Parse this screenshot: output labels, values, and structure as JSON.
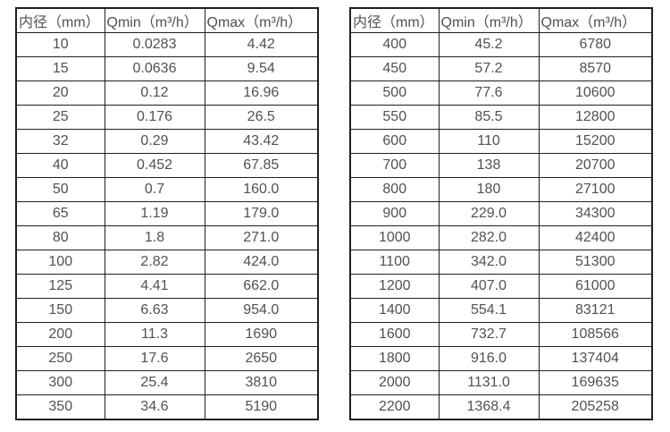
{
  "colors": {
    "background": "#ffffff",
    "border": "#1f1f1f",
    "text": "#515151"
  },
  "chart_data": [
    {
      "type": "table",
      "title": "",
      "columns": [
        "内径（mm）",
        "Qmin（m³/h）",
        "Qmax（m³/h）"
      ],
      "rows": [
        [
          "10",
          "0.0283",
          "4.42"
        ],
        [
          "15",
          "0.0636",
          "9.54"
        ],
        [
          "20",
          "0.12",
          "16.96"
        ],
        [
          "25",
          "0.176",
          "26.5"
        ],
        [
          "32",
          "0.29",
          "43.42"
        ],
        [
          "40",
          "0.452",
          "67.85"
        ],
        [
          "50",
          "0.7",
          "160.0"
        ],
        [
          "65",
          "1.19",
          "179.0"
        ],
        [
          "80",
          "1.8",
          "271.0"
        ],
        [
          "100",
          "2.82",
          "424.0"
        ],
        [
          "125",
          "4.41",
          "662.0"
        ],
        [
          "150",
          "6.63",
          "954.0"
        ],
        [
          "200",
          "11.3",
          "1690"
        ],
        [
          "250",
          "17.6",
          "2650"
        ],
        [
          "300",
          "25.4",
          "3810"
        ],
        [
          "350",
          "34.6",
          "5190"
        ]
      ]
    },
    {
      "type": "table",
      "title": "",
      "columns": [
        "内径（mm）",
        "Qmin（m³/h）",
        "Qmax（m³/h）"
      ],
      "rows": [
        [
          "400",
          "45.2",
          "6780"
        ],
        [
          "450",
          "57.2",
          "8570"
        ],
        [
          "500",
          "77.6",
          "10600"
        ],
        [
          "550",
          "85.5",
          "12800"
        ],
        [
          "600",
          "110",
          "15200"
        ],
        [
          "700",
          "138",
          "20700"
        ],
        [
          "800",
          "180",
          "27100"
        ],
        [
          "900",
          "229.0",
          "34300"
        ],
        [
          "1000",
          "282.0",
          "42400"
        ],
        [
          "1100",
          "342.0",
          "51300"
        ],
        [
          "1200",
          "407.0",
          "61000"
        ],
        [
          "1400",
          "554.1",
          "83121"
        ],
        [
          "1600",
          "732.7",
          "108566"
        ],
        [
          "1800",
          "916.0",
          "137404"
        ],
        [
          "2000",
          "1131.0",
          "169635"
        ],
        [
          "2200",
          "1368.4",
          "205258"
        ]
      ]
    }
  ]
}
